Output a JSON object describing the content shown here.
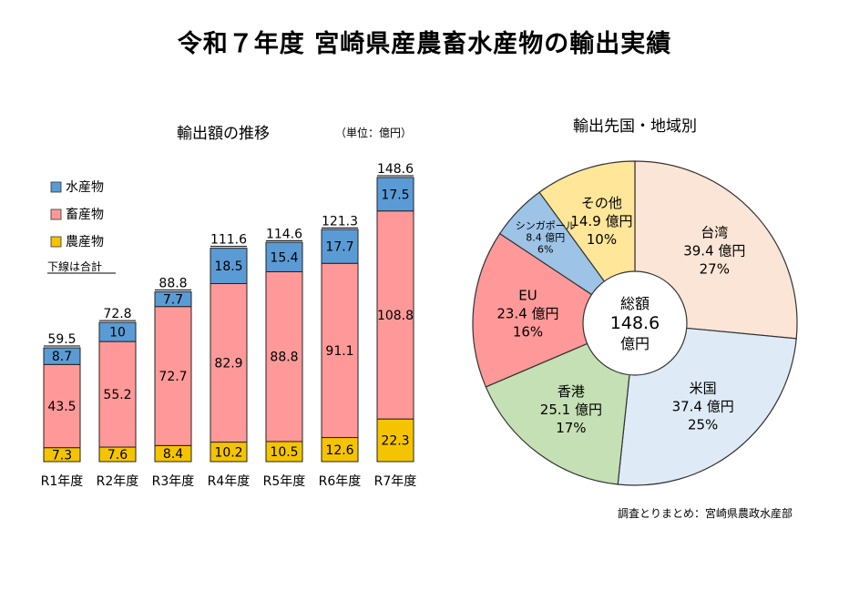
{
  "page": {
    "title": "令和７年度 宮崎県産農畜水産物の輸出実績",
    "source_note": "調査とりまとめ：宮崎県農政水産部"
  },
  "chart_data": [
    {
      "type": "bar",
      "stacked": true,
      "title": "輸出額の推移",
      "unit_note": "（単位：億円）",
      "categories": [
        "R1年度",
        "R2年度",
        "R3年度",
        "R4年度",
        "R5年度",
        "R6年度",
        "R7年度"
      ],
      "series": [
        {
          "name": "農産物",
          "color": "#F5C400",
          "values": [
            7.3,
            7.6,
            8.4,
            10.2,
            10.5,
            12.6,
            22.3
          ]
        },
        {
          "name": "畜産物",
          "color": "#FF9999",
          "values": [
            43.5,
            55.2,
            72.7,
            82.9,
            88.8,
            91.1,
            108.8
          ]
        },
        {
          "name": "水産物",
          "color": "#5B9BD5",
          "values": [
            8.7,
            10,
            7.7,
            18.5,
            15.4,
            17.7,
            17.5
          ]
        }
      ],
      "totals": [
        59.5,
        72.8,
        88.8,
        111.6,
        114.6,
        121.3,
        148.6
      ],
      "legend_order": [
        "水産物",
        "畜産物",
        "農産物"
      ],
      "legend_note": "下線は合計",
      "ylim": [
        0,
        160
      ]
    },
    {
      "type": "pie",
      "title": "輸出先国・地域別",
      "center_label": [
        "総額",
        "148.6",
        "億円"
      ],
      "slices": [
        {
          "name": "台湾",
          "value_text": "39.4 億円",
          "pct_text": "27%",
          "value": 39.4,
          "color": "#FBE5D6"
        },
        {
          "name": "米国",
          "value_text": "37.4 億円",
          "pct_text": "25%",
          "value": 37.4,
          "color": "#DEEBF7"
        },
        {
          "name": "香港",
          "value_text": "25.1 億円",
          "pct_text": "17%",
          "value": 25.1,
          "color": "#C5E0B4"
        },
        {
          "name": "EU",
          "value_text": "23.4 億円",
          "pct_text": "16%",
          "value": 23.4,
          "color": "#FF9999"
        },
        {
          "name": "シンガポール",
          "value_text": "8.4 億円",
          "pct_text": "6%",
          "value": 8.4,
          "color": "#9DC3E6"
        },
        {
          "name": "その他",
          "value_text": "14.9 億円",
          "pct_text": "10%",
          "value": 14.9,
          "color": "#FFE699"
        }
      ]
    }
  ]
}
